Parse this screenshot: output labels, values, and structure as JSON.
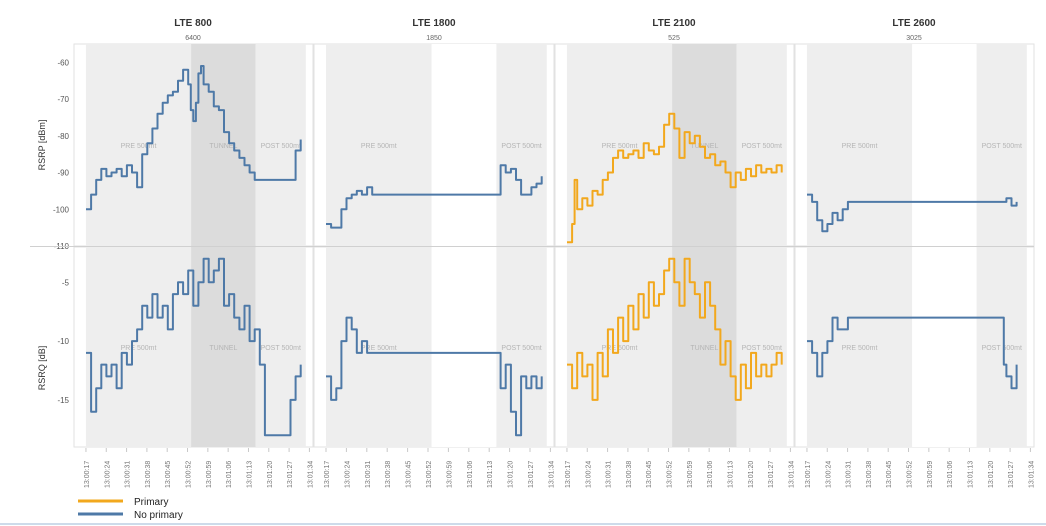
{
  "chart_data": {
    "type": "line",
    "columns": [
      {
        "title": "LTE 800",
        "subtitle": "6400"
      },
      {
        "title": "LTE 1800",
        "subtitle": "1850"
      },
      {
        "title": "LTE 2100",
        "subtitle": "525"
      },
      {
        "title": "LTE 2600",
        "subtitle": "3025"
      }
    ],
    "x_ticks": [
      "13:00:17",
      "13:00:24",
      "13:00:31",
      "13:00:38",
      "13:00:45",
      "13:00:52",
      "13:00:59",
      "13:01:06",
      "13:01:13",
      "13:01:20",
      "13:01:27",
      "13:01:34"
    ],
    "rows": [
      {
        "ylabel": "RSRP [dBm]",
        "ylim": [
          -110,
          -55
        ],
        "yticks": [
          -60,
          -70,
          -80,
          -90,
          -100,
          -110
        ]
      },
      {
        "ylabel": "RSRQ [dB]",
        "ylim": [
          -19,
          -2
        ],
        "yticks": [
          -5,
          -10,
          -15
        ]
      }
    ],
    "phase_labels": {
      "pre": "PRE 500mt",
      "tunnel": "TUNNEL",
      "post": "POST 500mt"
    },
    "legend": [
      {
        "label": "Primary",
        "color": "#F2A81D"
      },
      {
        "label": "No primary",
        "color": "#4E79A7"
      }
    ],
    "colors": {
      "primary": "#F2A81D",
      "no_primary": "#4E79A7",
      "pre_post_band": "#eeeeee",
      "tunnel_band": "#dcdcdc"
    },
    "panels": [
      {
        "row": 0,
        "col": 0,
        "series": "no_primary",
        "labels": [
          "pre",
          "tunnel",
          "post"
        ],
        "points": [
          [
            0,
            -100
          ],
          [
            1,
            -96
          ],
          [
            2,
            -92
          ],
          [
            3,
            -89
          ],
          [
            4,
            -91
          ],
          [
            5,
            -90
          ],
          [
            6,
            -89
          ],
          [
            7,
            -91
          ],
          [
            8,
            -88
          ],
          [
            9,
            -90
          ],
          [
            10,
            -94
          ],
          [
            11,
            -85
          ],
          [
            12,
            -82
          ],
          [
            13,
            -78
          ],
          [
            14,
            -74
          ],
          [
            15,
            -71
          ],
          [
            16,
            -69
          ],
          [
            17,
            -68
          ],
          [
            18,
            -65
          ],
          [
            19,
            -62
          ],
          [
            20,
            -66
          ],
          [
            20.5,
            -73
          ],
          [
            21,
            -76
          ],
          [
            21.5,
            -71
          ],
          [
            22,
            -63
          ],
          [
            22.5,
            -61
          ],
          [
            23,
            -66
          ],
          [
            24,
            -68
          ],
          [
            25,
            -72
          ],
          [
            26,
            -73
          ],
          [
            27,
            -79
          ],
          [
            28,
            -82
          ],
          [
            29,
            -84
          ],
          [
            30,
            -86
          ],
          [
            31,
            -88
          ],
          [
            32,
            -90
          ],
          [
            33,
            -92
          ],
          [
            34,
            -92
          ],
          [
            35,
            -92
          ],
          [
            36,
            -92
          ],
          [
            37,
            -92
          ],
          [
            38,
            -92
          ],
          [
            39,
            -92
          ],
          [
            40,
            -92
          ],
          [
            41,
            -84
          ],
          [
            42,
            -81
          ]
        ]
      },
      {
        "row": 0,
        "col": 1,
        "series": "no_primary",
        "labels": [
          "pre",
          "post"
        ],
        "points": [
          [
            0,
            -104
          ],
          [
            1,
            -105
          ],
          [
            2,
            -105
          ],
          [
            3,
            -100
          ],
          [
            4,
            -97
          ],
          [
            5,
            -96
          ],
          [
            6,
            -95
          ],
          [
            7,
            -96
          ],
          [
            8,
            -94
          ],
          [
            9,
            -96
          ],
          [
            12,
            -96
          ],
          [
            15,
            -96
          ],
          [
            20,
            -96
          ],
          [
            25,
            -96
          ],
          [
            30,
            -96
          ],
          [
            33,
            -96
          ],
          [
            34,
            -88
          ],
          [
            35,
            -90
          ],
          [
            36,
            -89
          ],
          [
            37,
            -92
          ],
          [
            38,
            -96
          ],
          [
            39,
            -96
          ],
          [
            40,
            -94
          ],
          [
            41,
            -93
          ],
          [
            42,
            -91
          ]
        ]
      },
      {
        "row": 0,
        "col": 2,
        "series": "primary",
        "labels": [
          "pre",
          "tunnel",
          "post"
        ],
        "points": [
          [
            0,
            -109
          ],
          [
            1,
            -104
          ],
          [
            1.5,
            -92
          ],
          [
            2,
            -100
          ],
          [
            3,
            -97
          ],
          [
            4,
            -99
          ],
          [
            5,
            -95
          ],
          [
            6,
            -96
          ],
          [
            7,
            -92
          ],
          [
            8,
            -90
          ],
          [
            9,
            -86
          ],
          [
            10,
            -84
          ],
          [
            11,
            -86
          ],
          [
            12,
            -85
          ],
          [
            13,
            -84
          ],
          [
            14,
            -86
          ],
          [
            15,
            -82
          ],
          [
            16,
            -84
          ],
          [
            17,
            -85
          ],
          [
            18,
            -83
          ],
          [
            19,
            -77
          ],
          [
            20,
            -74
          ],
          [
            21,
            -78
          ],
          [
            22,
            -86
          ],
          [
            23,
            -79
          ],
          [
            24,
            -82
          ],
          [
            25,
            -80
          ],
          [
            26,
            -83
          ],
          [
            27,
            -86
          ],
          [
            28,
            -85
          ],
          [
            29,
            -88
          ],
          [
            30,
            -87
          ],
          [
            31,
            -90
          ],
          [
            32,
            -94
          ],
          [
            33,
            -90
          ],
          [
            34,
            -92
          ],
          [
            35,
            -89
          ],
          [
            36,
            -91
          ],
          [
            37,
            -88
          ],
          [
            38,
            -90
          ],
          [
            39,
            -89
          ],
          [
            40,
            -90
          ],
          [
            41,
            -88
          ],
          [
            42,
            -90
          ]
        ]
      },
      {
        "row": 0,
        "col": 3,
        "series": "no_primary",
        "labels": [
          "pre",
          "post"
        ],
        "points": [
          [
            0,
            -96
          ],
          [
            1,
            -98
          ],
          [
            2,
            -103
          ],
          [
            3,
            -106
          ],
          [
            4,
            -104
          ],
          [
            5,
            -101
          ],
          [
            6,
            -103
          ],
          [
            7,
            -100
          ],
          [
            8,
            -98
          ],
          [
            9,
            -98
          ],
          [
            12,
            -98
          ],
          [
            15,
            -98
          ],
          [
            20,
            -98
          ],
          [
            25,
            -98
          ],
          [
            30,
            -98
          ],
          [
            34,
            -98
          ],
          [
            38,
            -98
          ],
          [
            39,
            -97
          ],
          [
            40,
            -99
          ],
          [
            41,
            -98
          ]
        ]
      },
      {
        "row": 1,
        "col": 0,
        "series": "no_primary",
        "labels": [
          "pre",
          "tunnel",
          "post"
        ],
        "points": [
          [
            0,
            -11
          ],
          [
            1,
            -16
          ],
          [
            2,
            -14
          ],
          [
            3,
            -12
          ],
          [
            4,
            -13
          ],
          [
            5,
            -12
          ],
          [
            6,
            -14
          ],
          [
            7,
            -11
          ],
          [
            8,
            -12
          ],
          [
            9,
            -10
          ],
          [
            10,
            -9
          ],
          [
            11,
            -7
          ],
          [
            12,
            -8
          ],
          [
            13,
            -6
          ],
          [
            14,
            -8
          ],
          [
            15,
            -7
          ],
          [
            16,
            -9
          ],
          [
            17,
            -6
          ],
          [
            18,
            -5
          ],
          [
            19,
            -6
          ],
          [
            20,
            -4
          ],
          [
            21,
            -7
          ],
          [
            22,
            -5
          ],
          [
            23,
            -3
          ],
          [
            24,
            -5
          ],
          [
            25,
            -4
          ],
          [
            26,
            -3
          ],
          [
            27,
            -7
          ],
          [
            28,
            -6
          ],
          [
            29,
            -8
          ],
          [
            30,
            -9
          ],
          [
            31,
            -7
          ],
          [
            32,
            -10
          ],
          [
            33,
            -9
          ],
          [
            34,
            -12
          ],
          [
            35,
            -18
          ],
          [
            36,
            -18
          ],
          [
            37,
            -18
          ],
          [
            38,
            -18
          ],
          [
            39,
            -18
          ],
          [
            40,
            -15
          ],
          [
            41,
            -13
          ],
          [
            42,
            -12
          ]
        ]
      },
      {
        "row": 1,
        "col": 1,
        "series": "no_primary",
        "labels": [
          "pre",
          "post"
        ],
        "points": [
          [
            0,
            -13
          ],
          [
            1,
            -15
          ],
          [
            2,
            -14
          ],
          [
            3,
            -10
          ],
          [
            4,
            -8
          ],
          [
            5,
            -9
          ],
          [
            6,
            -11
          ],
          [
            7,
            -10
          ],
          [
            8,
            -11
          ],
          [
            9,
            -11
          ],
          [
            12,
            -11
          ],
          [
            15,
            -11
          ],
          [
            20,
            -11
          ],
          [
            25,
            -11
          ],
          [
            30,
            -11
          ],
          [
            33,
            -11
          ],
          [
            34,
            -14
          ],
          [
            35,
            -12
          ],
          [
            36,
            -16
          ],
          [
            37,
            -18
          ],
          [
            38,
            -13
          ],
          [
            39,
            -14
          ],
          [
            40,
            -13
          ],
          [
            41,
            -14
          ],
          [
            42,
            -13
          ]
        ]
      },
      {
        "row": 1,
        "col": 2,
        "series": "primary",
        "labels": [
          "pre",
          "tunnel",
          "post"
        ],
        "points": [
          [
            0,
            -12
          ],
          [
            1,
            -14
          ],
          [
            2,
            -11
          ],
          [
            3,
            -13
          ],
          [
            4,
            -12
          ],
          [
            5,
            -15
          ],
          [
            6,
            -11
          ],
          [
            7,
            -13
          ],
          [
            8,
            -9
          ],
          [
            9,
            -11
          ],
          [
            10,
            -8
          ],
          [
            11,
            -10
          ],
          [
            12,
            -7
          ],
          [
            13,
            -9
          ],
          [
            14,
            -6
          ],
          [
            15,
            -8
          ],
          [
            16,
            -5
          ],
          [
            17,
            -7
          ],
          [
            18,
            -6
          ],
          [
            19,
            -4
          ],
          [
            20,
            -3
          ],
          [
            21,
            -5
          ],
          [
            22,
            -7
          ],
          [
            23,
            -3
          ],
          [
            24,
            -5
          ],
          [
            25,
            -6
          ],
          [
            26,
            -8
          ],
          [
            27,
            -5
          ],
          [
            28,
            -7
          ],
          [
            29,
            -9
          ],
          [
            30,
            -12
          ],
          [
            31,
            -10
          ],
          [
            32,
            -13
          ],
          [
            33,
            -15
          ],
          [
            34,
            -12
          ],
          [
            35,
            -14
          ],
          [
            36,
            -11
          ],
          [
            37,
            -13
          ],
          [
            38,
            -12
          ],
          [
            39,
            -13
          ],
          [
            40,
            -12
          ],
          [
            41,
            -11
          ],
          [
            42,
            -12
          ]
        ]
      },
      {
        "row": 1,
        "col": 3,
        "series": "no_primary",
        "labels": [
          "pre",
          "post"
        ],
        "points": [
          [
            0,
            -10
          ],
          [
            1,
            -11
          ],
          [
            2,
            -13
          ],
          [
            3,
            -11
          ],
          [
            4,
            -10
          ],
          [
            5,
            -8
          ],
          [
            6,
            -9
          ],
          [
            7,
            -9
          ],
          [
            8,
            -8
          ],
          [
            9,
            -8
          ],
          [
            12,
            -8
          ],
          [
            15,
            -8
          ],
          [
            20,
            -8
          ],
          [
            25,
            -8
          ],
          [
            30,
            -8
          ],
          [
            34,
            -8
          ],
          [
            38,
            -8
          ],
          [
            38.5,
            -12
          ],
          [
            39,
            -13
          ],
          [
            40,
            -14
          ],
          [
            41,
            -12
          ]
        ]
      }
    ]
  }
}
